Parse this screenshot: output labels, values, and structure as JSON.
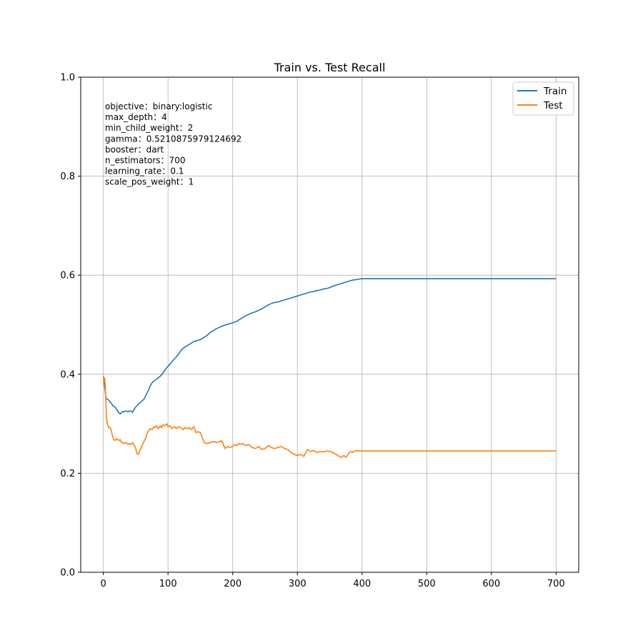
{
  "chart_data": {
    "type": "line",
    "title": "Train vs. Test Recall",
    "xlabel": "",
    "ylabel": "",
    "xlim": [
      -35,
      735
    ],
    "ylim": [
      0,
      1.0
    ],
    "xticks": [
      0,
      100,
      200,
      300,
      400,
      500,
      600,
      700
    ],
    "xtick_labels": [
      "0",
      "100",
      "200",
      "300",
      "400",
      "500",
      "600",
      "700"
    ],
    "yticks": [
      0,
      0.2,
      0.4,
      0.6,
      0.8,
      1.0
    ],
    "ytick_labels": [
      "0.0",
      "0.2",
      "0.4",
      "0.6",
      "0.8",
      "1.0"
    ],
    "grid": true,
    "legend_position": "top-right",
    "annotation_lines": [
      "objective：binary:logistic",
      "max_depth：4",
      "min_child_weight：2",
      "gamma：0.5210875979124692",
      "booster：dart",
      "n_estimators：700",
      "learning_rate：0.1",
      "scale_pos_weight：1"
    ],
    "series": [
      {
        "name": "Train",
        "color": "#1f77b4",
        "points": [
          [
            0,
            0.395
          ],
          [
            2,
            0.375
          ],
          [
            4,
            0.352
          ],
          [
            6,
            0.35
          ],
          [
            8,
            0.348
          ],
          [
            10,
            0.345
          ],
          [
            12,
            0.342
          ],
          [
            14,
            0.338
          ],
          [
            16,
            0.335
          ],
          [
            18,
            0.334
          ],
          [
            20,
            0.33
          ],
          [
            22,
            0.326
          ],
          [
            24,
            0.322
          ],
          [
            26,
            0.32
          ],
          [
            28,
            0.322
          ],
          [
            30,
            0.325
          ],
          [
            32,
            0.324
          ],
          [
            35,
            0.326
          ],
          [
            38,
            0.324
          ],
          [
            40,
            0.326
          ],
          [
            43,
            0.325
          ],
          [
            45,
            0.323
          ],
          [
            48,
            0.33
          ],
          [
            50,
            0.334
          ],
          [
            53,
            0.338
          ],
          [
            56,
            0.342
          ],
          [
            60,
            0.346
          ],
          [
            63,
            0.35
          ],
          [
            66,
            0.358
          ],
          [
            70,
            0.368
          ],
          [
            73,
            0.378
          ],
          [
            76,
            0.384
          ],
          [
            80,
            0.388
          ],
          [
            84,
            0.392
          ],
          [
            88,
            0.396
          ],
          [
            92,
            0.402
          ],
          [
            96,
            0.41
          ],
          [
            100,
            0.416
          ],
          [
            104,
            0.422
          ],
          [
            108,
            0.428
          ],
          [
            112,
            0.434
          ],
          [
            116,
            0.44
          ],
          [
            120,
            0.448
          ],
          [
            125,
            0.454
          ],
          [
            130,
            0.458
          ],
          [
            135,
            0.462
          ],
          [
            140,
            0.466
          ],
          [
            145,
            0.468
          ],
          [
            150,
            0.47
          ],
          [
            155,
            0.474
          ],
          [
            160,
            0.478
          ],
          [
            165,
            0.484
          ],
          [
            170,
            0.488
          ],
          [
            175,
            0.492
          ],
          [
            180,
            0.495
          ],
          [
            185,
            0.498
          ],
          [
            190,
            0.5
          ],
          [
            195,
            0.502
          ],
          [
            200,
            0.504
          ],
          [
            205,
            0.506
          ],
          [
            210,
            0.51
          ],
          [
            215,
            0.514
          ],
          [
            220,
            0.518
          ],
          [
            225,
            0.521
          ],
          [
            230,
            0.524
          ],
          [
            235,
            0.526
          ],
          [
            240,
            0.529
          ],
          [
            245,
            0.532
          ],
          [
            250,
            0.536
          ],
          [
            255,
            0.54
          ],
          [
            260,
            0.543
          ],
          [
            265,
            0.545
          ],
          [
            270,
            0.546
          ],
          [
            275,
            0.548
          ],
          [
            280,
            0.55
          ],
          [
            285,
            0.552
          ],
          [
            290,
            0.554
          ],
          [
            295,
            0.556
          ],
          [
            300,
            0.558
          ],
          [
            305,
            0.56
          ],
          [
            310,
            0.562
          ],
          [
            315,
            0.564
          ],
          [
            320,
            0.566
          ],
          [
            325,
            0.567
          ],
          [
            330,
            0.569
          ],
          [
            335,
            0.57
          ],
          [
            340,
            0.572
          ],
          [
            345,
            0.573
          ],
          [
            350,
            0.575
          ],
          [
            355,
            0.578
          ],
          [
            360,
            0.58
          ],
          [
            365,
            0.582
          ],
          [
            370,
            0.584
          ],
          [
            375,
            0.586
          ],
          [
            380,
            0.588
          ],
          [
            385,
            0.59
          ],
          [
            390,
            0.591
          ],
          [
            395,
            0.592
          ],
          [
            400,
            0.593
          ],
          [
            450,
            0.593
          ],
          [
            500,
            0.593
          ],
          [
            550,
            0.593
          ],
          [
            600,
            0.593
          ],
          [
            650,
            0.593
          ],
          [
            700,
            0.593
          ]
        ]
      },
      {
        "name": "Test",
        "color": "#ff7f0e",
        "points": [
          [
            0,
            0.397
          ],
          [
            1,
            0.385
          ],
          [
            2,
            0.392
          ],
          [
            3,
            0.375
          ],
          [
            4,
            0.34
          ],
          [
            5,
            0.31
          ],
          [
            6,
            0.3
          ],
          [
            8,
            0.292
          ],
          [
            10,
            0.293
          ],
          [
            12,
            0.288
          ],
          [
            14,
            0.276
          ],
          [
            16,
            0.268
          ],
          [
            18,
            0.266
          ],
          [
            20,
            0.27
          ],
          [
            22,
            0.268
          ],
          [
            24,
            0.266
          ],
          [
            26,
            0.268
          ],
          [
            28,
            0.262
          ],
          [
            30,
            0.262
          ],
          [
            32,
            0.26
          ],
          [
            35,
            0.262
          ],
          [
            38,
            0.258
          ],
          [
            40,
            0.26
          ],
          [
            42,
            0.258
          ],
          [
            45,
            0.262
          ],
          [
            48,
            0.256
          ],
          [
            50,
            0.25
          ],
          [
            52,
            0.24
          ],
          [
            54,
            0.238
          ],
          [
            56,
            0.245
          ],
          [
            58,
            0.25
          ],
          [
            60,
            0.256
          ],
          [
            62,
            0.262
          ],
          [
            65,
            0.27
          ],
          [
            68,
            0.282
          ],
          [
            70,
            0.286
          ],
          [
            72,
            0.29
          ],
          [
            75,
            0.288
          ],
          [
            78,
            0.294
          ],
          [
            80,
            0.292
          ],
          [
            82,
            0.296
          ],
          [
            85,
            0.29
          ],
          [
            88,
            0.296
          ],
          [
            90,
            0.292
          ],
          [
            92,
            0.298
          ],
          [
            95,
            0.296
          ],
          [
            98,
            0.3
          ],
          [
            100,
            0.294
          ],
          [
            103,
            0.296
          ],
          [
            106,
            0.29
          ],
          [
            110,
            0.294
          ],
          [
            113,
            0.29
          ],
          [
            116,
            0.294
          ],
          [
            120,
            0.292
          ],
          [
            123,
            0.288
          ],
          [
            126,
            0.292
          ],
          [
            130,
            0.29
          ],
          [
            133,
            0.292
          ],
          [
            136,
            0.288
          ],
          [
            140,
            0.294
          ],
          [
            143,
            0.282
          ],
          [
            146,
            0.284
          ],
          [
            150,
            0.282
          ],
          [
            153,
            0.272
          ],
          [
            156,
            0.262
          ],
          [
            160,
            0.26
          ],
          [
            165,
            0.262
          ],
          [
            170,
            0.264
          ],
          [
            175,
            0.262
          ],
          [
            180,
            0.264
          ],
          [
            183,
            0.266
          ],
          [
            186,
            0.256
          ],
          [
            188,
            0.25
          ],
          [
            192,
            0.254
          ],
          [
            196,
            0.252
          ],
          [
            200,
            0.254
          ],
          [
            203,
            0.258
          ],
          [
            206,
            0.256
          ],
          [
            210,
            0.26
          ],
          [
            213,
            0.258
          ],
          [
            216,
            0.26
          ],
          [
            220,
            0.256
          ],
          [
            225,
            0.258
          ],
          [
            230,
            0.252
          ],
          [
            235,
            0.25
          ],
          [
            240,
            0.254
          ],
          [
            245,
            0.248
          ],
          [
            250,
            0.25
          ],
          [
            255,
            0.256
          ],
          [
            260,
            0.252
          ],
          [
            265,
            0.25
          ],
          [
            270,
            0.252
          ],
          [
            275,
            0.254
          ],
          [
            280,
            0.25
          ],
          [
            285,
            0.248
          ],
          [
            290,
            0.242
          ],
          [
            295,
            0.238
          ],
          [
            300,
            0.236
          ],
          [
            305,
            0.238
          ],
          [
            310,
            0.234
          ],
          [
            313,
            0.242
          ],
          [
            316,
            0.248
          ],
          [
            320,
            0.244
          ],
          [
            325,
            0.246
          ],
          [
            330,
            0.242
          ],
          [
            335,
            0.244
          ],
          [
            340,
            0.243
          ],
          [
            345,
            0.245
          ],
          [
            350,
            0.244
          ],
          [
            355,
            0.242
          ],
          [
            360,
            0.238
          ],
          [
            365,
            0.234
          ],
          [
            368,
            0.232
          ],
          [
            372,
            0.236
          ],
          [
            375,
            0.232
          ],
          [
            378,
            0.238
          ],
          [
            382,
            0.244
          ],
          [
            386,
            0.242
          ],
          [
            390,
            0.246
          ],
          [
            395,
            0.245
          ],
          [
            400,
            0.245
          ],
          [
            450,
            0.245
          ],
          [
            500,
            0.245
          ],
          [
            550,
            0.245
          ],
          [
            600,
            0.245
          ],
          [
            650,
            0.245
          ],
          [
            700,
            0.245
          ]
        ]
      }
    ]
  }
}
